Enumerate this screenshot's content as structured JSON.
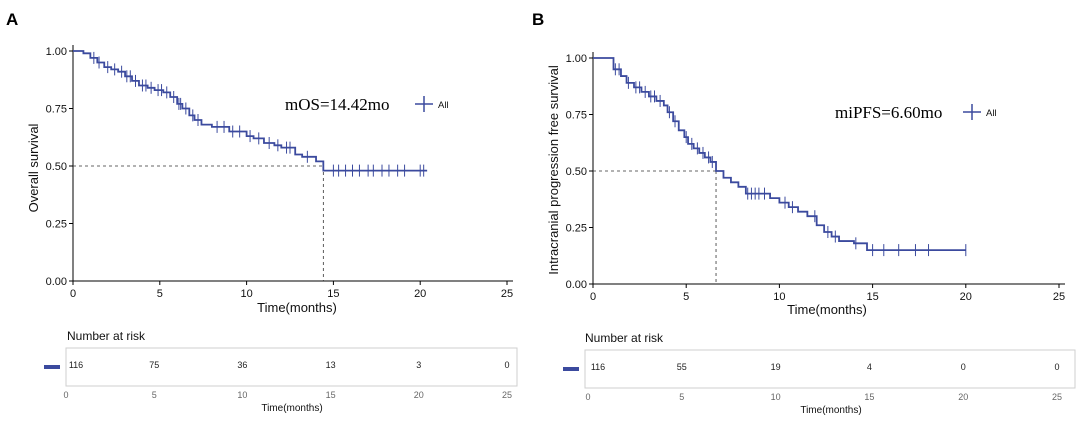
{
  "colors": {
    "curve": "#3b4a9e",
    "axis": "#000000",
    "grid_box": "#cfcfcf"
  },
  "chart_data": [
    {
      "type": "line",
      "panel_label": "A",
      "xlabel": "Time(months)",
      "ylabel": "Overall survival",
      "xlim": [
        0,
        25
      ],
      "ylim": [
        0,
        1
      ],
      "xticks": [
        0,
        5,
        10,
        15,
        20,
        25
      ],
      "xtick_labels": [
        "0",
        "5",
        "10",
        "15",
        "20",
        "25"
      ],
      "yticks": [
        0,
        0.25,
        0.5,
        0.75,
        1
      ],
      "ytick_labels": [
        "0.00",
        "0.25",
        "0.50",
        "0.75",
        "1.00"
      ],
      "grid": false,
      "median_label": "mOS=14.42mo",
      "median": 14.42,
      "legend": {
        "placement": "right-of-label",
        "entries": [
          "All"
        ]
      },
      "series": [
        {
          "name": "All",
          "x": [
            0,
            0.6,
            1.0,
            1.4,
            1.8,
            2.2,
            2.6,
            3.0,
            3.4,
            3.8,
            4.3,
            4.7,
            5.2,
            5.6,
            6.0,
            6.3,
            6.7,
            7.0,
            7.4,
            8.0,
            9.0,
            10.0,
            10.4,
            11.0,
            11.6,
            12.0,
            12.8,
            13.2,
            14.0,
            14.42,
            20.4
          ],
          "y": [
            1.0,
            0.99,
            0.97,
            0.95,
            0.93,
            0.92,
            0.91,
            0.89,
            0.87,
            0.85,
            0.84,
            0.83,
            0.82,
            0.8,
            0.77,
            0.75,
            0.72,
            0.7,
            0.68,
            0.67,
            0.65,
            0.63,
            0.62,
            0.6,
            0.59,
            0.58,
            0.55,
            0.54,
            0.52,
            0.48,
            0.48
          ],
          "censored_x": [
            1.2,
            1.5,
            2.0,
            2.4,
            2.8,
            3.1,
            3.3,
            3.6,
            4.0,
            4.2,
            4.5,
            4.9,
            5.1,
            5.4,
            5.8,
            6.1,
            6.2,
            6.5,
            6.9,
            7.2,
            8.3,
            8.7,
            9.2,
            9.6,
            10.2,
            10.7,
            11.3,
            11.8,
            12.3,
            12.5,
            13.5,
            15.0,
            15.3,
            15.7,
            16.1,
            16.5,
            17.0,
            17.3,
            17.8,
            18.2,
            18.7,
            19.1,
            20.0,
            20.2
          ]
        }
      ],
      "risk_table": {
        "title": "Number at risk",
        "xlabel": "Time(months)",
        "times": [
          "0",
          "5",
          "10",
          "15",
          "20",
          "25"
        ],
        "values": [
          "116",
          "75",
          "36",
          "13",
          "3",
          "0"
        ]
      }
    },
    {
      "type": "line",
      "panel_label": "B",
      "xlabel": "Time(months)",
      "ylabel": "Intracranial progression free survival",
      "xlim": [
        0,
        25
      ],
      "ylim": [
        0,
        1
      ],
      "xticks": [
        0,
        5,
        10,
        15,
        20,
        25
      ],
      "xtick_labels": [
        "0",
        "5",
        "10",
        "15",
        "20",
        "25"
      ],
      "yticks": [
        0,
        0.25,
        0.5,
        0.75,
        1
      ],
      "ytick_labels": [
        "0.00",
        "0.25",
        "0.50",
        "0.75",
        "1.00"
      ],
      "grid": false,
      "median_label": "miPFS=6.60mo",
      "median": 6.6,
      "legend": {
        "placement": "right-of-label",
        "entries": [
          "All"
        ]
      },
      "series": [
        {
          "name": "All",
          "x": [
            0,
            1.1,
            1.5,
            1.8,
            2.2,
            2.6,
            3.0,
            3.4,
            3.8,
            4.0,
            4.3,
            4.6,
            4.9,
            5.1,
            5.4,
            5.7,
            6.0,
            6.3,
            6.6,
            7.0,
            7.4,
            7.8,
            8.2,
            9.0,
            9.5,
            10.0,
            10.5,
            11.0,
            11.5,
            12.0,
            12.4,
            12.8,
            13.2,
            14.0,
            14.7,
            20.0
          ],
          "y": [
            1.0,
            0.95,
            0.92,
            0.89,
            0.87,
            0.85,
            0.83,
            0.81,
            0.79,
            0.76,
            0.72,
            0.68,
            0.65,
            0.62,
            0.6,
            0.58,
            0.56,
            0.54,
            0.5,
            0.47,
            0.45,
            0.43,
            0.4,
            0.4,
            0.38,
            0.36,
            0.34,
            0.32,
            0.3,
            0.26,
            0.23,
            0.21,
            0.19,
            0.18,
            0.15,
            0.15
          ],
          "censored_x": [
            1.2,
            1.4,
            1.9,
            2.3,
            2.5,
            2.8,
            3.1,
            3.3,
            3.6,
            4.1,
            4.4,
            5.0,
            5.3,
            5.6,
            5.9,
            6.2,
            6.4,
            8.3,
            8.5,
            8.7,
            8.9,
            9.2,
            10.3,
            10.7,
            11.9,
            12.6,
            13.0,
            14.1,
            15.0,
            15.6,
            16.4,
            17.3,
            18.0,
            20.0
          ]
        }
      ],
      "risk_table": {
        "title": "Number at risk",
        "xlabel": "Time(months)",
        "times": [
          "0",
          "5",
          "10",
          "15",
          "20",
          "25"
        ],
        "values": [
          "116",
          "55",
          "19",
          "4",
          "0",
          "0"
        ]
      }
    }
  ]
}
